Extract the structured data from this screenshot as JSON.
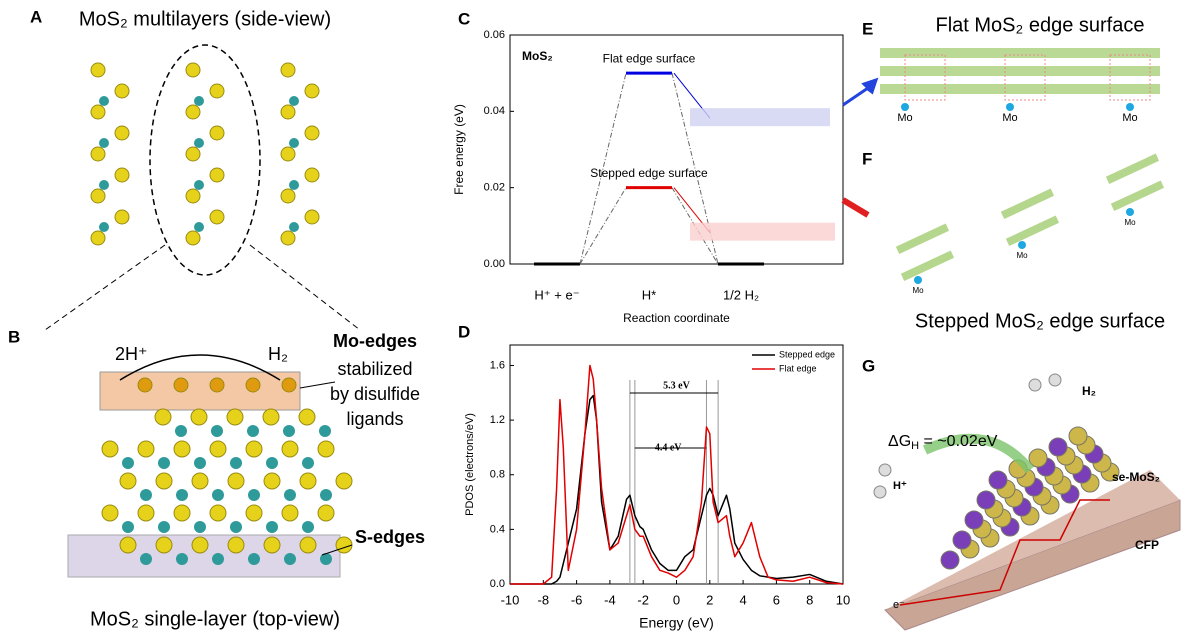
{
  "panels": {
    "a": {
      "label": "A",
      "title": "MoS₂ multilayers (side-view)"
    },
    "b": {
      "label": "B",
      "h_plus": "2H⁺",
      "h2": "H₂",
      "mo_edges": "Mo-edges",
      "mo_note": [
        "stabilized",
        "by disulfide",
        "ligands"
      ],
      "s_edges": "S-edges",
      "caption": "MoS₂ single-layer (top-view)"
    },
    "e": {
      "label": "E",
      "title": "Flat MoS₂ edge surface",
      "atom_labels": [
        "Mo",
        "Mo",
        "Mo"
      ]
    },
    "f": {
      "label": "F",
      "title": "Stepped MoS₂ edge surface",
      "atom_labels": [
        "Mo",
        "Mo",
        "Mo"
      ]
    },
    "g": {
      "label": "G",
      "dg": "ΔG",
      "dg_sub": "H",
      "dg_rest": " = ~0.02eV",
      "h2": "H₂",
      "h_plus": "H⁺",
      "se": "se-MoS₂",
      "cfp": "CFP",
      "electron": "e⁻"
    }
  },
  "chart_data": [
    {
      "type": "level",
      "panel_label": "C",
      "annotation": "MoS₂",
      "xlabel": "Reaction coordinate",
      "ylabel": "Free energy (eV)",
      "categories": [
        "H⁺ + e⁻",
        "H*",
        "1/2 H₂"
      ],
      "end_color": "#000000",
      "series": [
        {
          "name": "Flat edge surface",
          "color": "#0000e0",
          "values": [
            0,
            0.05,
            0
          ]
        },
        {
          "name": "Stepped edge surface",
          "color": "#e00000",
          "values": [
            0,
            0.02,
            0
          ]
        }
      ],
      "ylim": [
        0,
        0.06
      ],
      "yticks": [
        {
          "value": 0,
          "label": "0.00"
        },
        {
          "value": 0.02,
          "label": "0.02"
        },
        {
          "value": 0.04,
          "label": "0.04"
        },
        {
          "value": 0.06,
          "label": "0.06"
        }
      ]
    },
    {
      "type": "line",
      "panel_label": "D",
      "xlabel": "Energy (eV)",
      "ylabel": "PDOS (electrons/eV)",
      "annotations": [
        "5.3 eV",
        "4.4 eV"
      ],
      "x": [
        -10,
        -8,
        -7.5,
        -7.2,
        -7,
        -6.8,
        -6.5,
        -6,
        -5.5,
        -5.2,
        -5,
        -4.8,
        -4.5,
        -4,
        -3.5,
        -3,
        -2.8,
        -2.5,
        -2.2,
        -2,
        -1.5,
        -1,
        -0.5,
        0,
        0.5,
        1,
        1.5,
        1.8,
        2,
        2.2,
        2.5,
        3,
        3.2,
        3.5,
        4,
        4.5,
        5,
        5.5,
        6,
        7,
        8,
        9,
        10
      ],
      "series": [
        {
          "name": "Stepped edge",
          "color": "#000000",
          "values": [
            0,
            0,
            0,
            0.02,
            0.05,
            0.15,
            0.3,
            0.55,
            1.1,
            1.35,
            1.38,
            1.2,
            0.6,
            0.25,
            0.35,
            0.62,
            0.65,
            0.5,
            0.42,
            0.4,
            0.25,
            0.15,
            0.1,
            0.1,
            0.2,
            0.25,
            0.5,
            0.65,
            0.7,
            0.65,
            0.5,
            0.65,
            0.55,
            0.3,
            0.18,
            0.1,
            0.06,
            0.05,
            0.04,
            0.05,
            0.07,
            0.02,
            0
          ]
        },
        {
          "name": "Flat edge",
          "color": "#e00000",
          "values": [
            0,
            0,
            0.05,
            0.7,
            1.35,
            1.0,
            0.1,
            0.4,
            1.1,
            1.6,
            1.5,
            1.2,
            0.7,
            0.25,
            0.3,
            0.5,
            0.58,
            0.4,
            0.35,
            0.35,
            0.2,
            0.1,
            0.08,
            0.05,
            0.1,
            0.2,
            0.6,
            1.15,
            1.1,
            0.6,
            0.45,
            0.5,
            0.35,
            0.2,
            0.3,
            0.45,
            0.2,
            0.05,
            0.03,
            0.02,
            0.05,
            0.01,
            0
          ]
        }
      ],
      "xlim": [
        -10,
        10
      ],
      "xticks": [
        -10,
        -8,
        -6,
        -4,
        -2,
        0,
        2,
        4,
        6,
        8,
        10
      ],
      "ylim": [
        0,
        1.75
      ],
      "yticks": [
        {
          "value": 0,
          "label": "0.0"
        },
        {
          "value": 0.4,
          "label": "0.4"
        },
        {
          "value": 0.8,
          "label": "0.8"
        },
        {
          "value": 1.2,
          "label": "1.2"
        },
        {
          "value": 1.6,
          "label": "1.6"
        }
      ]
    }
  ]
}
